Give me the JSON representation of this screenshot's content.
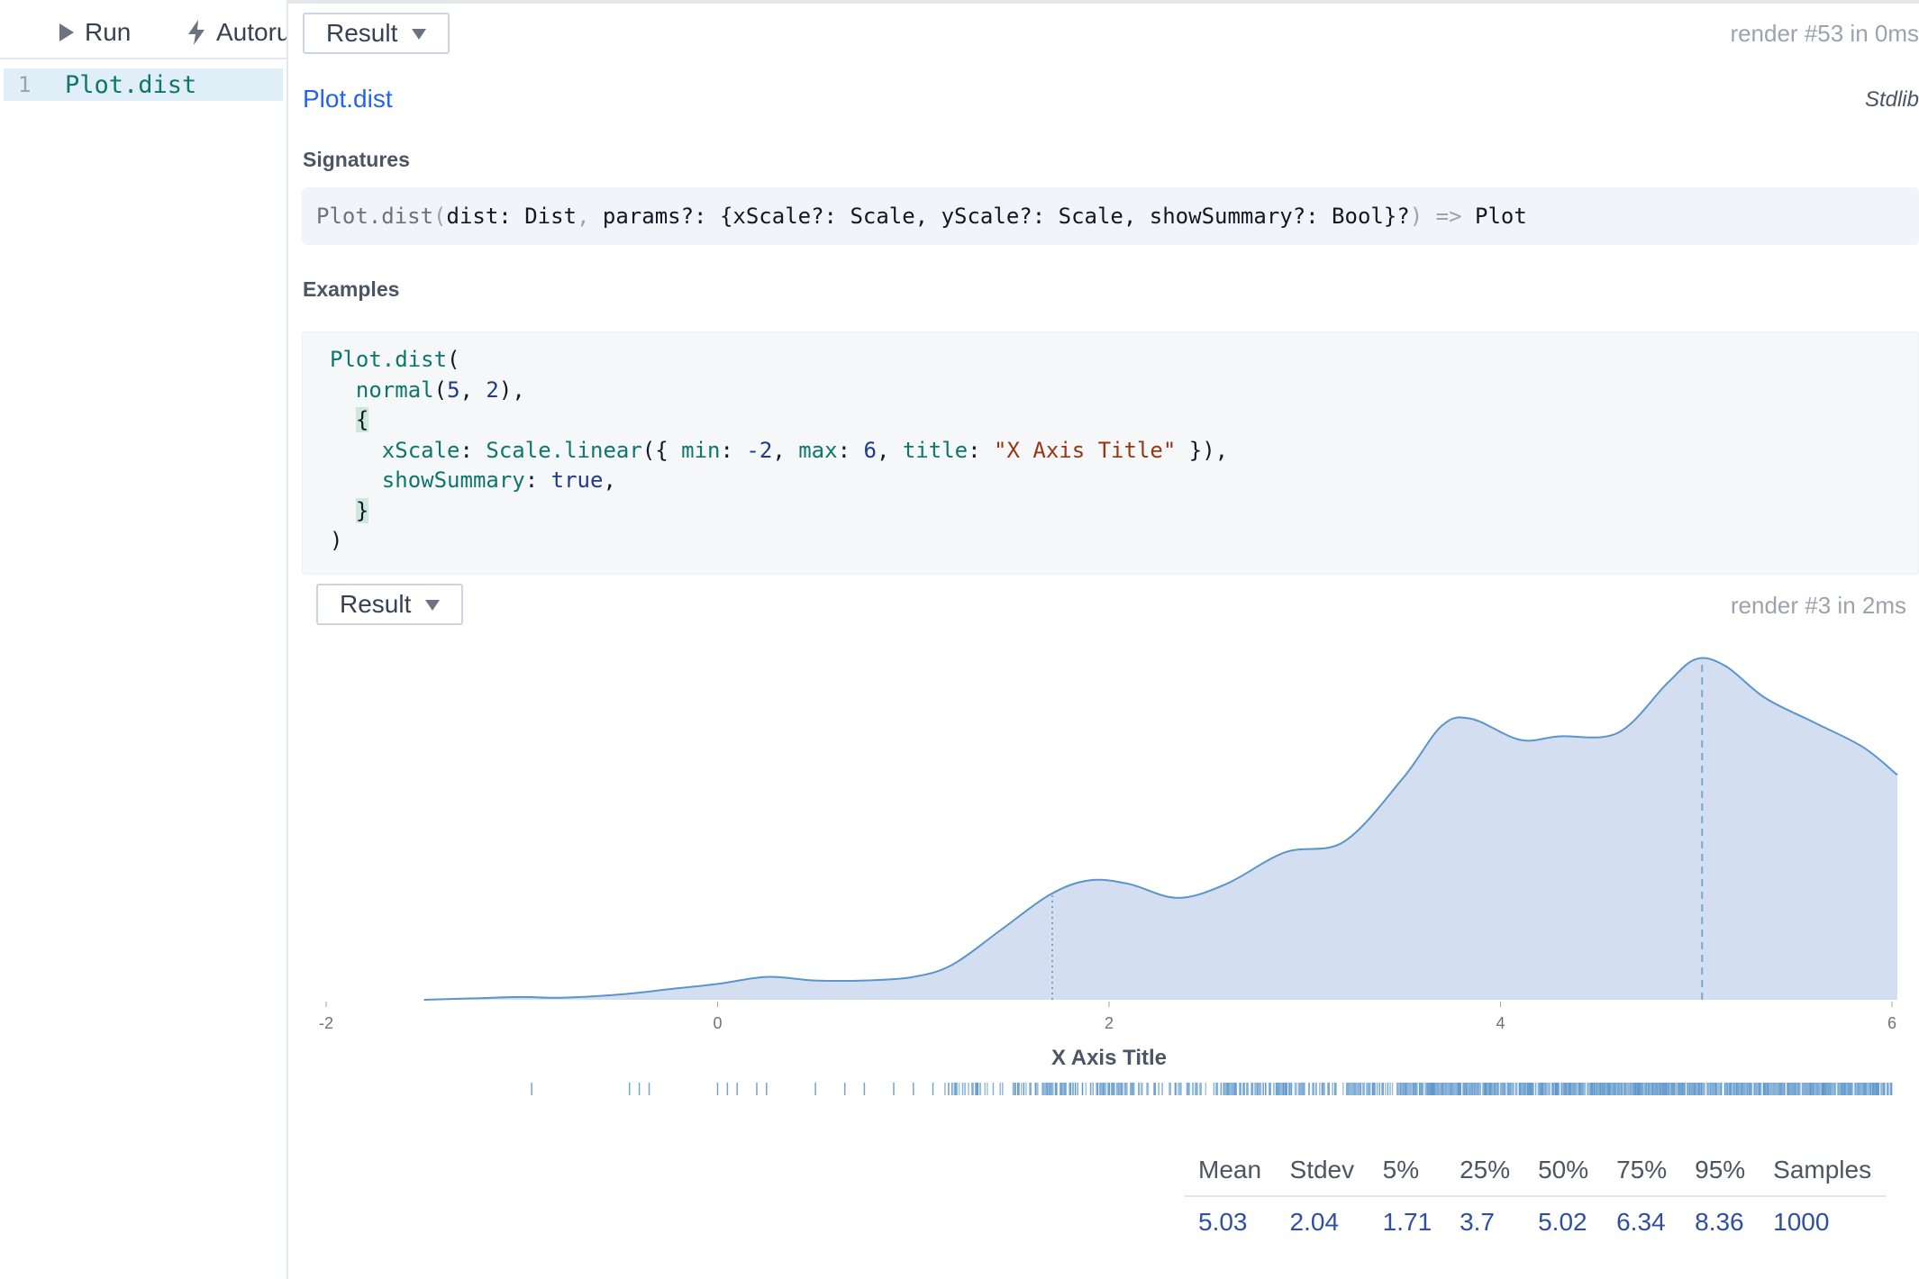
{
  "toolbar": {
    "run_label": "Run",
    "autorun_label": "Autorun"
  },
  "editor": {
    "line_number": "1",
    "code": "Plot.dist"
  },
  "output": {
    "result_label": "Result",
    "render_info": "render #53 in 0ms"
  },
  "docs": {
    "title": "Plot.dist",
    "library": "Stdlib",
    "signatures_label": "Signatures",
    "signature": {
      "fn": "Plot.dist",
      "open": "(",
      "params": "dist: Dist",
      "comma": ",",
      "rest": " params?: {xScale?: Scale, yScale?: Scale, showSummary?: Bool}?",
      "close": ")",
      "arrow": "=>",
      "returns": "Plot"
    },
    "examples_label": "Examples"
  },
  "example_result": {
    "result_label": "Result",
    "render_info": "render #3 in 2ms"
  },
  "chart_data": {
    "type": "area",
    "xlabel": "X Axis Title",
    "xlim": [
      -2,
      6
    ],
    "x_ticks": [
      "-2",
      "0",
      "2",
      "4",
      "6"
    ],
    "grid": false,
    "fill_color": "#d3dff0",
    "line_color": "#5b95c9",
    "density": {
      "x": [
        -1.5,
        -1.25,
        -1.0,
        -0.8,
        -0.5,
        -0.25,
        0.0,
        0.25,
        0.5,
        0.75,
        1.0,
        1.2,
        1.45,
        1.7,
        1.9,
        2.1,
        2.35,
        2.6,
        2.9,
        3.2,
        3.5,
        3.7,
        3.85,
        4.1,
        4.3,
        4.6,
        4.85,
        5.0,
        5.15,
        5.35,
        5.6,
        5.85,
        6.05
      ],
      "y": [
        0.0,
        0.004,
        0.008,
        0.006,
        0.015,
        0.03,
        0.045,
        0.065,
        0.055,
        0.055,
        0.065,
        0.1,
        0.2,
        0.3,
        0.34,
        0.33,
        0.29,
        0.33,
        0.42,
        0.45,
        0.63,
        0.78,
        0.8,
        0.74,
        0.75,
        0.76,
        0.9,
        0.97,
        0.95,
        0.86,
        0.79,
        0.72,
        0.64
      ]
    },
    "markers": [
      {
        "label": "5%",
        "x": 1.71,
        "style": "dotted"
      },
      {
        "label": "mean",
        "x": 5.03,
        "style": "dashed"
      }
    ],
    "rug_samples": [
      -0.95,
      -0.45,
      -0.4,
      -0.35,
      0.0,
      0.05,
      0.1,
      0.2,
      0.25,
      0.5,
      0.65,
      0.75,
      0.9,
      1.0,
      1.1
    ]
  },
  "summary": {
    "headers": [
      "Mean",
      "Stdev",
      "5%",
      "25%",
      "50%",
      "75%",
      "95%",
      "Samples"
    ],
    "values": [
      "5.03",
      "2.04",
      "1.71",
      "3.7",
      "5.02",
      "6.34",
      "8.36",
      "1000"
    ]
  }
}
